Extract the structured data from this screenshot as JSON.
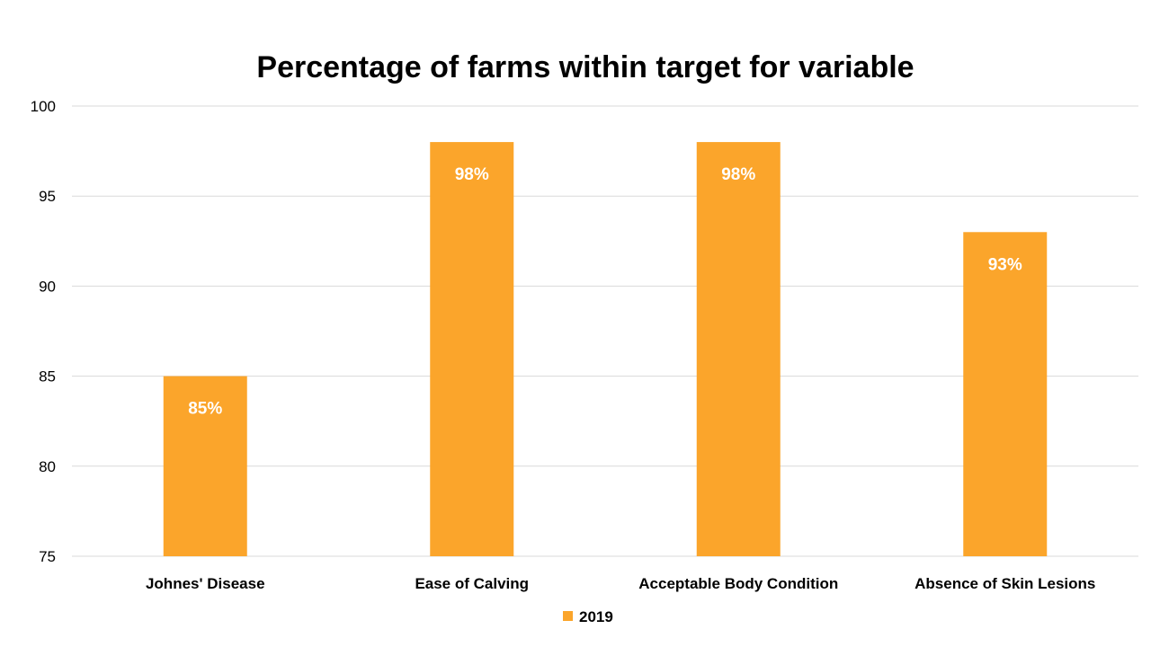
{
  "chart_data": {
    "type": "bar",
    "title": "Percentage of farms within target for variable",
    "categories": [
      "Johnes' Disease",
      "Ease of Calving",
      "Acceptable Body Condition",
      "Absence of Skin Lesions"
    ],
    "series": [
      {
        "name": "2019",
        "values": [
          85,
          98,
          98,
          93
        ],
        "data_labels": [
          "85%",
          "98%",
          "98%",
          "93%"
        ],
        "color": "#FBA52B"
      }
    ],
    "ylim": [
      75,
      100
    ],
    "yticks": [
      "75",
      "80",
      "85",
      "90",
      "95",
      "100"
    ],
    "grid": true,
    "legend": "bottom-center"
  }
}
